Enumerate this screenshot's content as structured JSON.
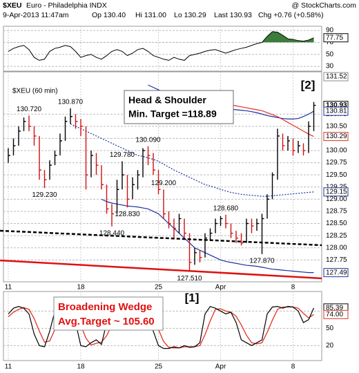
{
  "chart_data": {
    "type": "hlc",
    "symbol": "$XEU",
    "title": "Euro - Philadelphia INDX",
    "source": "@ StockCharts.com",
    "date": "9-Apr-2013 11:47am",
    "quote": [
      "Op 130.40",
      "Hi 131.00",
      "Lo 130.29",
      "Last 130.93",
      "Chg +0.76 (+0.58%)"
    ],
    "panel_label": "$XEU (60 min)",
    "note_box": [
      "Head & Shoulder",
      "Min. Target =118.89"
    ],
    "wave_2": "[2]",
    "wave_1": "[1]",
    "wedge_box": [
      "Broadening Wedge",
      "Avg.Target ~ 105.60"
    ],
    "categories": [
      "11",
      null,
      null,
      null,
      null,
      null,
      null,
      null,
      null,
      null,
      null,
      null,
      null,
      null,
      "18",
      null,
      null,
      null,
      null,
      null,
      null,
      null,
      null,
      null,
      null,
      null,
      null,
      null,
      null,
      "25",
      null,
      null,
      null,
      null,
      null,
      null,
      null,
      null,
      null,
      null,
      null,
      "Apr",
      null,
      null,
      null,
      null,
      null,
      null,
      null,
      null,
      null,
      null,
      null,
      null,
      null,
      "8",
      null,
      null,
      null,
      null
    ],
    "close": [
      129.9,
      130.1,
      130.4,
      130.6,
      130.5,
      130.3,
      129.6,
      129.4,
      129.7,
      129.9,
      130.2,
      130.6,
      130.7,
      130.6,
      130.5,
      129.5,
      129.9,
      129.7,
      129.3,
      128.8,
      128.7,
      129.2,
      129.5,
      129.0,
      129.3,
      129.5,
      130.0,
      129.9,
      129.6,
      129.2,
      128.7,
      128.5,
      128.4,
      128.6,
      128.3,
      127.7,
      127.9,
      127.8,
      128.2,
      128.3,
      128.5,
      128.6,
      128.5,
      128.3,
      128.2,
      128.1,
      128.5,
      128.45,
      128.5,
      128.6,
      129.0,
      129.5,
      130.3,
      130.1,
      130.2,
      130.0,
      130.1,
      130.0,
      130.5,
      130.93
    ],
    "high": [
      130.05,
      130.25,
      130.5,
      130.68,
      130.72,
      130.5,
      130.3,
      129.6,
      129.8,
      130.0,
      130.35,
      130.7,
      130.87,
      130.75,
      130.65,
      130.5,
      130.0,
      129.95,
      129.7,
      129.3,
      128.9,
      129.4,
      129.78,
      129.5,
      129.45,
      129.6,
      130.05,
      130.09,
      129.95,
      129.6,
      129.2,
      128.75,
      128.6,
      128.7,
      128.6,
      128.3,
      128.0,
      127.95,
      128.3,
      128.4,
      128.6,
      128.65,
      128.68,
      128.5,
      128.35,
      128.3,
      128.6,
      128.6,
      128.6,
      128.7,
      129.1,
      129.55,
      130.45,
      130.35,
      130.3,
      130.25,
      130.2,
      130.15,
      130.6,
      131.0
    ],
    "low": [
      129.75,
      129.9,
      130.1,
      130.4,
      130.4,
      130.1,
      129.4,
      129.23,
      129.4,
      129.7,
      129.9,
      130.2,
      130.55,
      130.45,
      130.3,
      129.2,
      129.45,
      129.5,
      129.2,
      128.7,
      128.44,
      128.7,
      129.2,
      128.83,
      129.0,
      129.2,
      129.45,
      129.7,
      129.5,
      129.1,
      128.6,
      128.4,
      128.2,
      128.3,
      128.2,
      127.51,
      127.65,
      127.7,
      127.8,
      128.15,
      128.3,
      128.45,
      128.4,
      128.2,
      128.1,
      128.05,
      128.1,
      128.3,
      128.35,
      127.87,
      128.6,
      129.0,
      129.4,
      130.0,
      130.0,
      129.9,
      129.95,
      129.9,
      129.95,
      130.4
    ],
    "up_color": "#000000",
    "down_color": "#d01010",
    "overlays": [
      {
        "color": "#1a2fa0",
        "dash": false,
        "values": [
          null,
          null,
          null,
          null,
          null,
          null,
          null,
          null,
          null,
          null,
          null,
          null,
          null,
          null,
          null,
          null,
          null,
          null,
          null,
          null,
          null,
          null,
          null,
          null,
          null,
          null,
          null,
          131.35,
          131.3,
          131.25,
          131.2,
          131.15,
          131.1,
          131.05,
          131.0,
          130.98,
          130.96,
          130.94,
          130.92,
          130.9,
          130.88,
          130.87,
          130.86,
          130.85,
          130.84,
          130.83,
          130.82,
          130.8,
          130.78,
          130.75,
          130.72,
          130.7,
          130.68,
          130.66,
          130.65,
          130.65,
          130.66,
          130.7,
          130.75,
          130.81
        ]
      },
      {
        "color": "#e03020",
        "dash": false,
        "values": [
          null,
          null,
          null,
          null,
          null,
          null,
          null,
          null,
          null,
          null,
          null,
          null,
          null,
          null,
          null,
          null,
          null,
          null,
          null,
          null,
          null,
          null,
          null,
          null,
          null,
          null,
          null,
          null,
          null,
          null,
          null,
          null,
          null,
          null,
          null,
          null,
          null,
          null,
          null,
          null,
          131.0,
          130.98,
          130.96,
          130.94,
          130.92,
          130.9,
          130.88,
          130.86,
          130.84,
          130.82,
          130.78,
          130.74,
          130.7,
          130.64,
          130.58,
          130.52,
          130.46,
          130.4,
          130.34,
          130.29
        ]
      },
      {
        "color": "#1a2fa0",
        "dash": true,
        "values": [
          null,
          null,
          null,
          null,
          null,
          null,
          null,
          null,
          null,
          null,
          null,
          null,
          130.55,
          130.5,
          130.45,
          130.4,
          130.35,
          130.3,
          130.25,
          130.2,
          130.15,
          130.1,
          130.05,
          130.0,
          129.95,
          129.9,
          129.88,
          129.85,
          129.82,
          129.78,
          129.72,
          129.66,
          129.6,
          129.55,
          129.5,
          129.45,
          129.4,
          129.35,
          129.3,
          129.27,
          129.24,
          129.2,
          129.17,
          129.14,
          129.12,
          129.1,
          129.09,
          129.08,
          129.07,
          129.06,
          129.06,
          129.07,
          129.08,
          129.09,
          129.1,
          129.11,
          129.12,
          129.13,
          129.14,
          129.15
        ]
      },
      {
        "color": "#1a2fa0",
        "dash": false,
        "values": [
          null,
          null,
          null,
          null,
          null,
          null,
          null,
          null,
          null,
          null,
          null,
          null,
          null,
          null,
          null,
          null,
          null,
          null,
          129.0,
          128.95,
          128.92,
          128.9,
          128.88,
          128.86,
          128.85,
          128.84,
          128.82,
          128.8,
          128.75,
          128.7,
          128.6,
          128.5,
          128.4,
          128.3,
          128.2,
          128.1,
          128.0,
          127.95,
          127.9,
          127.85,
          127.8,
          127.75,
          127.72,
          127.7,
          127.68,
          127.66,
          127.64,
          127.63,
          127.62,
          127.6,
          127.58,
          127.56,
          127.55,
          127.54,
          127.53,
          127.52,
          127.51,
          127.5,
          127.49,
          127.49
        ]
      }
    ],
    "ylim": [
      127.3,
      131.62
    ],
    "yticks": [
      127.75,
      {
        "value": 128,
        "label": "128.00"
      },
      128.25,
      {
        "value": 128.5,
        "label": "128.50"
      },
      128.75,
      {
        "value": 129,
        "label": "129.00"
      },
      129.25,
      {
        "value": 129.5,
        "label": "129.50"
      },
      129.75,
      {
        "value": 130,
        "label": "130.00"
      },
      130.25,
      {
        "value": 130.5,
        "label": "130.50"
      },
      130.75
    ],
    "grid": true,
    "markers": [
      {
        "value": 131.52,
        "color": "#888888"
      },
      {
        "value": 130.93,
        "color": "#000000"
      },
      {
        "value": 130.81,
        "color": "#1a2fa0"
      },
      {
        "value": 130.29,
        "color": "#e03020"
      },
      {
        "value": 129.15,
        "color": "#1a2fa0"
      },
      {
        "value": 127.49,
        "color": "#1a2fa0"
      }
    ],
    "annotations": [
      {
        "value": 130.72,
        "label": "130.720"
      },
      {
        "value": 130.87,
        "label": "130.870"
      },
      {
        "value": 129.23,
        "label": "129.230"
      },
      {
        "value": 129.2,
        "label": "129.200"
      },
      {
        "value": 129.78,
        "label": "129.780"
      },
      {
        "value": 130.09,
        "label": "130.090"
      },
      {
        "value": 128.83,
        "label": "128.830"
      },
      {
        "value": 128.44,
        "label": "128.440"
      },
      {
        "value": 128.68,
        "label": "128.680"
      },
      {
        "value": 127.51,
        "label": "127.510"
      },
      {
        "value": 127.87,
        "label": "127.870"
      }
    ],
    "rsi": {
      "values": [
        55,
        60,
        63,
        65,
        58,
        45,
        40,
        42,
        55,
        60,
        62,
        65,
        63,
        55,
        45,
        48,
        50,
        45,
        42,
        48,
        55,
        58,
        55,
        48,
        52,
        58,
        60,
        55,
        48,
        45,
        42,
        40,
        45,
        42,
        40,
        48,
        50,
        52,
        55,
        57,
        58,
        55,
        52,
        55,
        58,
        60,
        62,
        65,
        68,
        70,
        80,
        88,
        87,
        82,
        76,
        75,
        73,
        72,
        74,
        77.75
      ],
      "color": "#000000",
      "fill": "#3b7d3b",
      "threshold": 70,
      "ylim": [
        22,
        97
      ],
      "yticks": [
        30,
        50,
        70,
        90
      ],
      "marker": {
        "value": 77.75,
        "color": "#000000"
      }
    },
    "stoch": {
      "k": [
        75,
        85,
        88,
        85,
        75,
        40,
        20,
        18,
        45,
        80,
        85,
        88,
        85,
        60,
        20,
        18,
        25,
        30,
        22,
        60,
        85,
        87,
        84,
        60,
        70,
        85,
        88,
        80,
        45,
        20,
        15,
        15,
        18,
        16,
        20,
        17,
        18,
        25,
        75,
        88,
        85,
        80,
        75,
        78,
        60,
        30,
        25,
        20,
        25,
        30,
        75,
        87,
        88,
        85,
        88,
        87,
        80,
        60,
        65,
        85.39
      ],
      "d": [
        70,
        78,
        83,
        86,
        83,
        67,
        45,
        26,
        28,
        48,
        70,
        84,
        86,
        78,
        55,
        33,
        21,
        24,
        26,
        37,
        56,
        77,
        85,
        77,
        71,
        72,
        81,
        84,
        71,
        48,
        27,
        17,
        16,
        16,
        18,
        18,
        18,
        20,
        39,
        63,
        83,
        84,
        80,
        78,
        71,
        56,
        38,
        25,
        23,
        25,
        43,
        64,
        83,
        87,
        87,
        87,
        85,
        76,
        68,
        74
      ],
      "k_color": "#000000",
      "d_color": "#e03020",
      "ylim": [
        -6,
        114
      ],
      "yticks": [
        20,
        50,
        80
      ],
      "markers": [
        {
          "value": 85.39,
          "color": "#000000"
        },
        {
          "value": 74,
          "label": "74.00",
          "color": "#e03020"
        }
      ]
    }
  }
}
